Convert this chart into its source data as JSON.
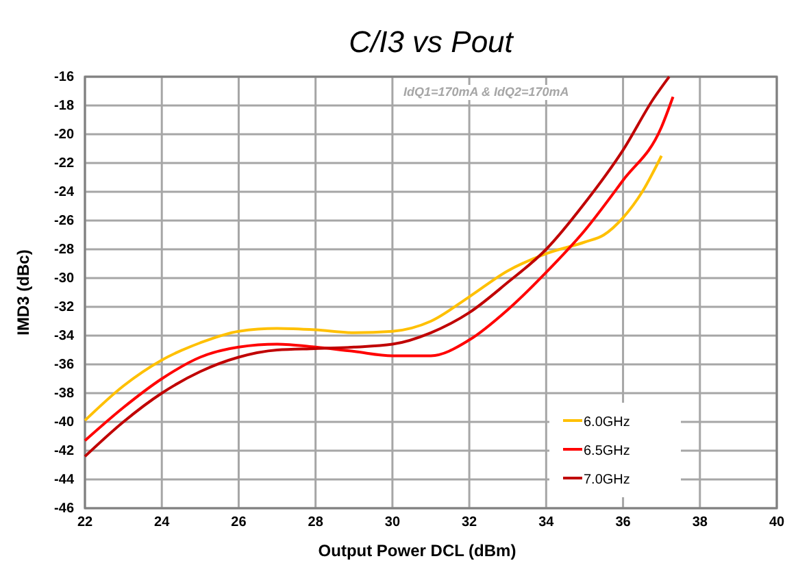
{
  "chart_data": {
    "type": "line",
    "title": "C/I3 vs Pout",
    "xlabel": "Output Power DCL (dBm)",
    "ylabel": "IMD3 (dBc)",
    "annotations": [
      "IdQ1=170mA  & IdQ2=170mA"
    ],
    "xlim": [
      22,
      40
    ],
    "xticks": [
      22,
      24,
      26,
      28,
      30,
      32,
      34,
      36,
      38,
      40
    ],
    "ylim": [
      -46,
      -16
    ],
    "yticks": [
      -46,
      -44,
      -42,
      -40,
      -38,
      -36,
      -34,
      -32,
      -30,
      -28,
      -26,
      -24,
      -22,
      -20,
      -18,
      -16
    ],
    "grid": true,
    "legend": "bottom right",
    "marker": "none",
    "line_style": "solid",
    "series": [
      {
        "name": "6.0GHz",
        "color": "#ffc000",
        "x": [
          22,
          23,
          24,
          25,
          26,
          27,
          28,
          29,
          30,
          31,
          32,
          33,
          34,
          35,
          35.5,
          36,
          36.5,
          37
        ],
        "values": [
          -39.9,
          -37.5,
          -35.7,
          -34.5,
          -33.7,
          -33.5,
          -33.6,
          -33.8,
          -33.7,
          -33.0,
          -31.3,
          -29.5,
          -28.3,
          -27.5,
          -27.0,
          -25.8,
          -24.0,
          -21.5
        ]
      },
      {
        "name": "6.5GHz",
        "color": "#ff0000",
        "x": [
          22,
          23,
          24,
          25,
          26,
          27,
          28,
          29,
          30,
          31,
          32,
          33,
          34,
          35,
          36,
          37,
          37.3
        ],
        "values": [
          -41.3,
          -39.0,
          -37.0,
          -35.5,
          -34.8,
          -34.6,
          -34.8,
          -35.1,
          -35.4,
          -35.4,
          -34.3,
          -32.2,
          -29.6,
          -26.7,
          -23.2,
          -19.5,
          -17.4
        ]
      },
      {
        "name": "7.0GHz",
        "color": "#c00000",
        "x": [
          22,
          23,
          24,
          25,
          26,
          27,
          28,
          29,
          30,
          31,
          32,
          33,
          34,
          35,
          36,
          36.8,
          37.2
        ],
        "values": [
          -42.4,
          -40.0,
          -38.0,
          -36.5,
          -35.5,
          -35.0,
          -34.9,
          -34.8,
          -34.6,
          -33.8,
          -32.4,
          -30.3,
          -28.0,
          -24.8,
          -21.1,
          -17.5,
          -16.0
        ]
      }
    ]
  }
}
